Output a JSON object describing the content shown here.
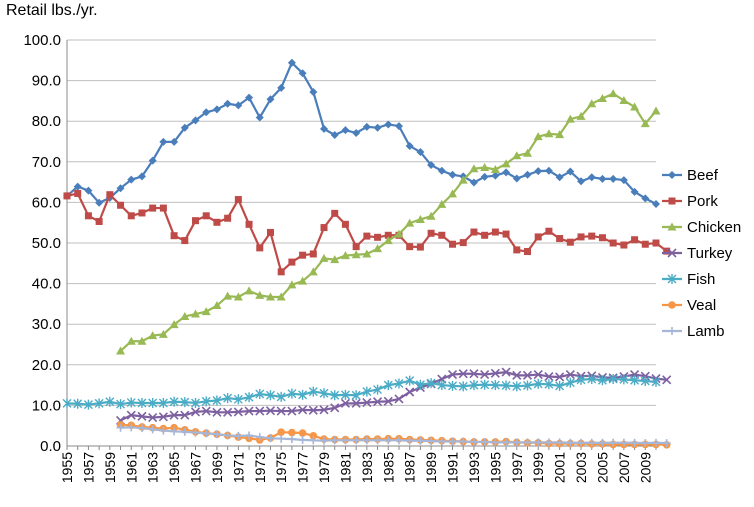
{
  "chart_data": {
    "type": "line",
    "title": "",
    "ylabel": "Retail lbs./yr.",
    "xlabel": "",
    "ylim": [
      0,
      100
    ],
    "yticks": [
      "0.0",
      "10.0",
      "20.0",
      "30.0",
      "40.0",
      "50.0",
      "60.0",
      "70.0",
      "80.0",
      "90.0",
      "100.0"
    ],
    "xlim": [
      1955,
      2010
    ],
    "xtick_labels": [
      "1955",
      "1957",
      "1959",
      "1961",
      "1963",
      "1965",
      "1967",
      "1969",
      "1971",
      "1973",
      "1975",
      "1977",
      "1979",
      "1981",
      "1983",
      "1985",
      "1987",
      "1989",
      "1991",
      "1993",
      "1995",
      "1997",
      "1999",
      "2001",
      "2003",
      "2005",
      "2007",
      "2009"
    ],
    "grid": "horizontal",
    "legend": "right",
    "series": [
      {
        "name": "Beef",
        "color": "#4A7EBB",
        "marker": "diamond",
        "start": 1955,
        "values": [
          61.6,
          63.9,
          62.9,
          59.9,
          61.1,
          63.5,
          65.6,
          66.4,
          70.3,
          74.9,
          74.9,
          78.4,
          80.2,
          82.2,
          82.9,
          84.3,
          83.9,
          85.8,
          80.9,
          85.4,
          88.2,
          94.4,
          91.8,
          87.2,
          78.1,
          76.6,
          77.8,
          77.1,
          78.6,
          78.4,
          79.2,
          78.8,
          73.9,
          72.4,
          69.2,
          67.8,
          66.8,
          66.4,
          64.9,
          66.3,
          66.6,
          67.4,
          65.9,
          66.8,
          67.7,
          67.8,
          66.2,
          67.6,
          65.2,
          66.2,
          65.8,
          65.8,
          65.5,
          62.6,
          61.0,
          59.6
        ]
      },
      {
        "name": "Pork",
        "color": "#BE4B48",
        "marker": "square",
        "start": 1955,
        "values": [
          61.6,
          62.2,
          56.7,
          55.3,
          61.9,
          59.3,
          56.7,
          57.4,
          58.6,
          58.6,
          51.8,
          50.6,
          55.5,
          56.7,
          55.1,
          56.1,
          60.7,
          54.6,
          48.8,
          52.6,
          42.9,
          45.3,
          47.0,
          47.3,
          53.8,
          57.3,
          54.6,
          49.1,
          51.7,
          51.4,
          51.9,
          51.9,
          49.1,
          49.0,
          52.4,
          51.9,
          49.7,
          50.1,
          52.7,
          51.9,
          52.7,
          52.2,
          48.3,
          47.9,
          51.5,
          52.9,
          51.1,
          50.2,
          51.5,
          51.7,
          51.3,
          50.0,
          49.5,
          50.8,
          49.7,
          50.0,
          48.0
        ]
      },
      {
        "name": "Chicken",
        "color": "#98B954",
        "marker": "triangle",
        "start": 1960,
        "values": [
          23.4,
          25.8,
          25.8,
          27.2,
          27.5,
          29.9,
          31.9,
          32.5,
          33.1,
          34.6,
          36.9,
          36.7,
          38.2,
          37.1,
          36.7,
          36.7,
          39.7,
          40.6,
          42.9,
          46.2,
          45.9,
          46.9,
          47.1,
          47.3,
          48.6,
          50.6,
          52.2,
          54.9,
          55.8,
          56.6,
          59.5,
          62.1,
          65.5,
          68.3,
          68.6,
          68.1,
          69.5,
          71.5,
          72.1,
          76.2,
          76.9,
          76.7,
          80.5,
          81.2,
          84.3,
          85.6,
          86.8,
          85.1,
          83.5,
          79.4,
          82.5
        ]
      },
      {
        "name": "Turkey",
        "color": "#7D60A0",
        "marker": "x",
        "start": 1960,
        "values": [
          6.3,
          7.6,
          7.3,
          7.0,
          7.2,
          7.6,
          7.6,
          8.4,
          8.6,
          8.3,
          8.3,
          8.4,
          8.6,
          8.6,
          8.7,
          8.6,
          8.6,
          8.9,
          8.8,
          8.9,
          9.4,
          10.5,
          10.5,
          10.7,
          10.9,
          11.0,
          11.6,
          13.3,
          14.4,
          15.3,
          16.5,
          17.6,
          17.8,
          17.8,
          17.6,
          17.9,
          18.2,
          17.4,
          17.4,
          17.6,
          17.1,
          17.0,
          17.6,
          17.2,
          17.3,
          16.9,
          16.8,
          17.1,
          17.6,
          17.2,
          16.6,
          16.3
        ]
      },
      {
        "name": "Fish",
        "color": "#4BACC6",
        "marker": "star",
        "start": 1955,
        "values": [
          10.5,
          10.4,
          10.2,
          10.5,
          10.9,
          10.3,
          10.7,
          10.6,
          10.6,
          10.6,
          10.9,
          10.8,
          10.6,
          11.0,
          11.2,
          11.8,
          11.5,
          12.0,
          12.8,
          12.5,
          12.1,
          12.9,
          12.6,
          13.4,
          13.0,
          12.5,
          12.6,
          12.5,
          13.4,
          13.9,
          15.0,
          15.4,
          16.1,
          15.1,
          15.5,
          15.0,
          14.8,
          14.7,
          15.0,
          15.1,
          15.0,
          14.9,
          14.7,
          14.9,
          15.3,
          15.2,
          14.8,
          15.6,
          16.3,
          16.5,
          16.2,
          16.5,
          16.4,
          16.2,
          16.0,
          15.8
        ]
      },
      {
        "name": "Veal",
        "color": "#F79646",
        "marker": "circle",
        "start": 1960,
        "values": [
          5.2,
          5.1,
          4.7,
          4.5,
          4.3,
          4.5,
          4.0,
          3.5,
          3.2,
          2.9,
          2.6,
          2.2,
          1.9,
          1.5,
          2.0,
          3.4,
          3.3,
          3.2,
          2.5,
          1.7,
          1.6,
          1.6,
          1.6,
          1.7,
          1.7,
          1.8,
          1.8,
          1.6,
          1.5,
          1.4,
          1.3,
          1.2,
          1.1,
          1.0,
          1.0,
          1.0,
          1.1,
          0.9,
          0.8,
          0.8,
          0.6,
          0.6,
          0.6,
          0.6,
          0.5,
          0.5,
          0.4,
          0.4,
          0.4,
          0.4,
          0.4,
          0.3
        ]
      },
      {
        "name": "Lamb",
        "color": "#A5B6D8",
        "marker": "plus",
        "start": 1960,
        "values": [
          4.5,
          4.6,
          4.4,
          4.1,
          3.8,
          3.6,
          3.5,
          3.3,
          3.1,
          2.9,
          2.6,
          2.5,
          2.6,
          2.2,
          1.9,
          1.8,
          1.7,
          1.5,
          1.4,
          1.3,
          1.4,
          1.4,
          1.4,
          1.4,
          1.4,
          1.4,
          1.4,
          1.3,
          1.3,
          1.2,
          1.1,
          1.1,
          1.1,
          1.0,
          1.0,
          0.9,
          0.9,
          0.9,
          0.9,
          0.9,
          0.9,
          0.9,
          0.8,
          0.8,
          0.8,
          0.8,
          0.8,
          0.8,
          0.8,
          0.7,
          0.8,
          0.7
        ]
      }
    ]
  }
}
